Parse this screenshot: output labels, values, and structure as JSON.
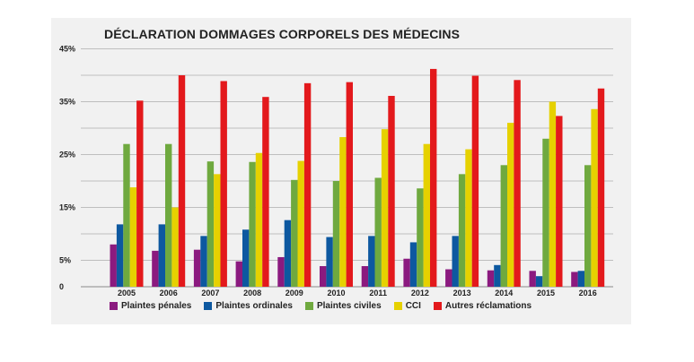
{
  "chart_data": {
    "type": "bar",
    "title": "DÉCLARATION DOMMAGES CORPORELS DES MÉDECINS",
    "categories": [
      "2005",
      "2006",
      "2007",
      "2008",
      "2009",
      "2010",
      "2011",
      "2012",
      "2013",
      "2014",
      "2015",
      "2016"
    ],
    "y_ticks": [
      "45%",
      "35%",
      "25%",
      "15%",
      "5%",
      "0"
    ],
    "ylim": [
      0,
      45
    ],
    "grid": true,
    "legend_position": "bottom",
    "series": [
      {
        "name": "Plaintes pénales",
        "color": "#8b1a7f",
        "values": [
          8.0,
          6.8,
          7.0,
          4.8,
          5.6,
          3.9,
          3.9,
          5.3,
          3.3,
          3.1,
          3.0,
          2.8
        ]
      },
      {
        "name": "Plaintes ordinales",
        "color": "#0d58a0",
        "values": [
          11.8,
          11.8,
          9.6,
          10.8,
          12.6,
          9.4,
          9.6,
          8.4,
          9.6,
          4.1,
          2.0,
          3.0
        ]
      },
      {
        "name": "Plaintes civiles",
        "color": "#6fa93f",
        "values": [
          27.0,
          27.0,
          23.7,
          23.6,
          20.2,
          20.0,
          20.6,
          18.6,
          21.3,
          23.0,
          28.0,
          23.0
        ]
      },
      {
        "name": "CCI",
        "color": "#e6d100",
        "values": [
          18.8,
          15.0,
          21.3,
          25.3,
          23.8,
          28.3,
          29.8,
          27.0,
          26.0,
          31.0,
          35.0,
          33.6
        ]
      },
      {
        "name": "Autres réclamations",
        "color": "#e3191c",
        "values": [
          35.2,
          40.0,
          38.9,
          35.9,
          38.5,
          38.7,
          36.1,
          41.2,
          39.9,
          39.1,
          32.3,
          37.5
        ]
      }
    ]
  }
}
